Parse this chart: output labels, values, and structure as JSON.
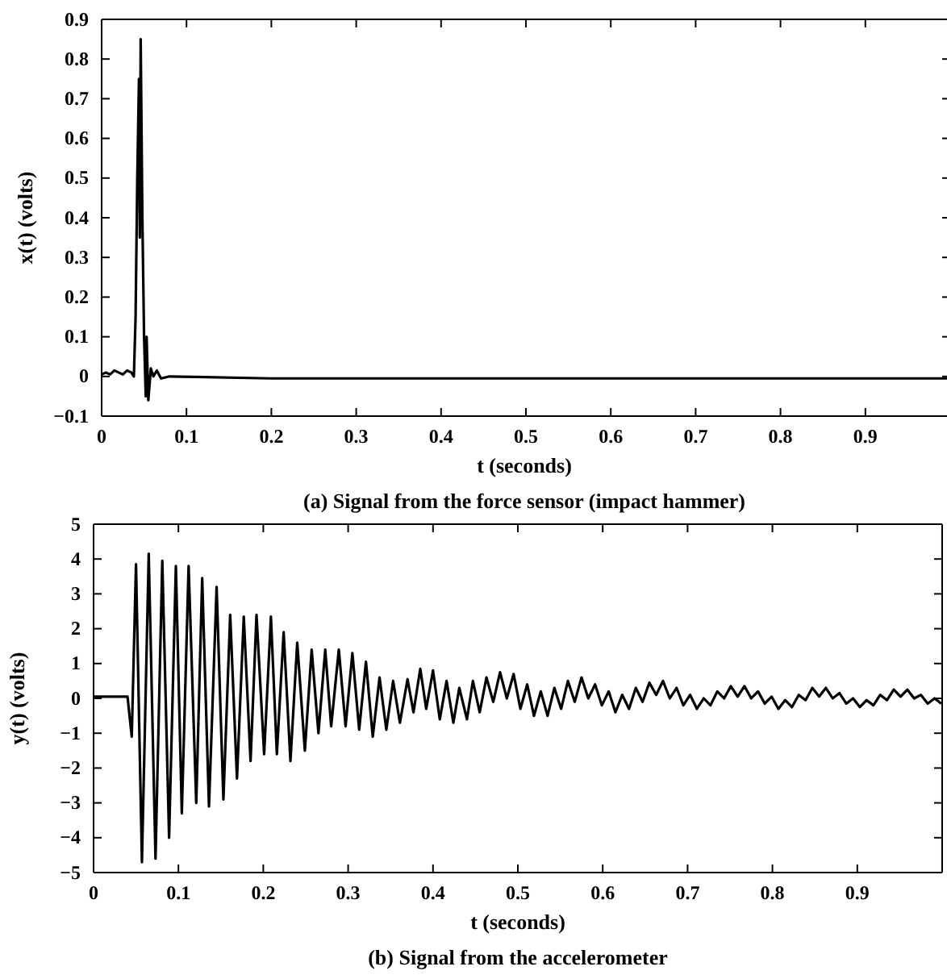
{
  "chart_data": [
    {
      "type": "line",
      "title": "(a) Signal from the force sensor (impact hammer)",
      "xlabel": "t (seconds)",
      "ylabel": "x(t) (volts)",
      "xlim": [
        0,
        1
      ],
      "ylim": [
        -0.1,
        0.9
      ],
      "xticks": [
        0,
        0.1,
        0.2,
        0.3,
        0.4,
        0.5,
        0.6,
        0.7,
        0.8,
        0.9
      ],
      "yticks": [
        -0.1,
        0,
        0.1,
        0.2,
        0.3,
        0.4,
        0.5,
        0.6,
        0.7,
        0.8,
        0.9
      ],
      "grid": false,
      "series": [
        {
          "color": "#000000",
          "x": [
            0,
            0.005,
            0.01,
            0.015,
            0.02,
            0.025,
            0.03,
            0.035,
            0.038,
            0.04,
            0.042,
            0.044,
            0.045,
            0.046,
            0.048,
            0.05,
            0.052,
            0.053,
            0.055,
            0.058,
            0.061,
            0.065,
            0.07,
            0.08,
            0.2,
            0.4,
            0.6,
            0.8,
            1
          ],
          "values": [
            0.005,
            0.01,
            0.005,
            0.015,
            0.01,
            0.005,
            0.015,
            0.01,
            0.0,
            0.15,
            0.5,
            0.75,
            0.35,
            0.85,
            0.4,
            0.1,
            -0.05,
            0.1,
            -0.06,
            0.02,
            0.0,
            0.015,
            -0.005,
            0.0,
            -0.005,
            -0.005,
            -0.005,
            -0.005,
            -0.005
          ]
        }
      ]
    },
    {
      "type": "line",
      "title": "(b) Signal from the accelerometer",
      "xlabel": "t (seconds)",
      "ylabel": "y(t) (volts)",
      "xlim": [
        0,
        1
      ],
      "ylim": [
        -5,
        5
      ],
      "xticks": [
        0,
        0.1,
        0.2,
        0.3,
        0.4,
        0.5,
        0.6,
        0.7,
        0.8,
        0.9
      ],
      "yticks": [
        -5,
        -4,
        -3,
        -2,
        -1,
        0,
        1,
        2,
        3,
        4,
        5
      ],
      "grid": false,
      "series": [
        {
          "color": "#000000",
          "x": [
            0,
            0.02,
            0.04,
            0.045,
            0.05,
            0.057,
            0.065,
            0.073,
            0.081,
            0.089,
            0.097,
            0.104,
            0.112,
            0.121,
            0.128,
            0.136,
            0.145,
            0.153,
            0.161,
            0.169,
            0.177,
            0.185,
            0.192,
            0.201,
            0.209,
            0.216,
            0.224,
            0.232,
            0.24,
            0.249,
            0.257,
            0.265,
            0.273,
            0.28,
            0.289,
            0.297,
            0.305,
            0.313,
            0.321,
            0.329,
            0.337,
            0.345,
            0.353,
            0.361,
            0.37,
            0.377,
            0.385,
            0.392,
            0.4,
            0.408,
            0.416,
            0.424,
            0.431,
            0.44,
            0.447,
            0.455,
            0.463,
            0.471,
            0.479,
            0.487,
            0.495,
            0.503,
            0.511,
            0.519,
            0.527,
            0.535,
            0.543,
            0.551,
            0.559,
            0.567,
            0.575,
            0.583,
            0.591,
            0.599,
            0.607,
            0.615,
            0.623,
            0.631,
            0.639,
            0.647,
            0.655,
            0.663,
            0.671,
            0.679,
            0.687,
            0.695,
            0.703,
            0.711,
            0.719,
            0.727,
            0.735,
            0.743,
            0.751,
            0.759,
            0.767,
            0.775,
            0.783,
            0.791,
            0.799,
            0.807,
            0.815,
            0.823,
            0.831,
            0.839,
            0.847,
            0.855,
            0.863,
            0.871,
            0.879,
            0.887,
            0.895,
            0.903,
            0.911,
            0.919,
            0.927,
            0.935,
            0.943,
            0.951,
            0.959,
            0.967,
            0.975,
            0.983,
            0.991,
            0.999
          ],
          "values": [
            0.05,
            0.05,
            0.05,
            -1.1,
            3.85,
            -4.7,
            4.15,
            -4.6,
            3.95,
            -4.0,
            3.8,
            -3.3,
            3.8,
            -3.0,
            3.45,
            -3.1,
            3.2,
            -2.9,
            2.4,
            -2.3,
            2.35,
            -1.8,
            2.4,
            -1.6,
            2.35,
            -1.6,
            1.9,
            -1.8,
            1.6,
            -1.5,
            1.4,
            -1.0,
            1.4,
            -0.8,
            1.4,
            -0.8,
            1.3,
            -0.9,
            1.05,
            -1.1,
            0.6,
            -0.9,
            0.5,
            -0.7,
            0.55,
            -0.4,
            0.85,
            -0.3,
            0.8,
            -0.6,
            0.5,
            -0.7,
            0.3,
            -0.6,
            0.5,
            -0.4,
            0.6,
            -0.1,
            0.75,
            0.0,
            0.7,
            -0.3,
            0.4,
            -0.5,
            0.2,
            -0.5,
            0.3,
            -0.3,
            0.5,
            -0.1,
            0.6,
            0.0,
            0.4,
            -0.2,
            0.2,
            -0.4,
            0.1,
            -0.3,
            0.3,
            -0.1,
            0.45,
            0.1,
            0.5,
            0.0,
            0.3,
            -0.2,
            0.1,
            -0.3,
            0.0,
            -0.2,
            0.2,
            0.0,
            0.35,
            0.05,
            0.35,
            0.0,
            0.2,
            -0.15,
            0.05,
            -0.3,
            -0.05,
            -0.25,
            0.1,
            -0.05,
            0.3,
            0.05,
            0.3,
            0.0,
            0.15,
            -0.15,
            0.0,
            -0.25,
            -0.05,
            -0.2,
            0.1,
            -0.05,
            0.25,
            0.05,
            0.25,
            0.0,
            0.1,
            -0.15,
            0.0,
            -0.15
          ]
        }
      ]
    }
  ]
}
